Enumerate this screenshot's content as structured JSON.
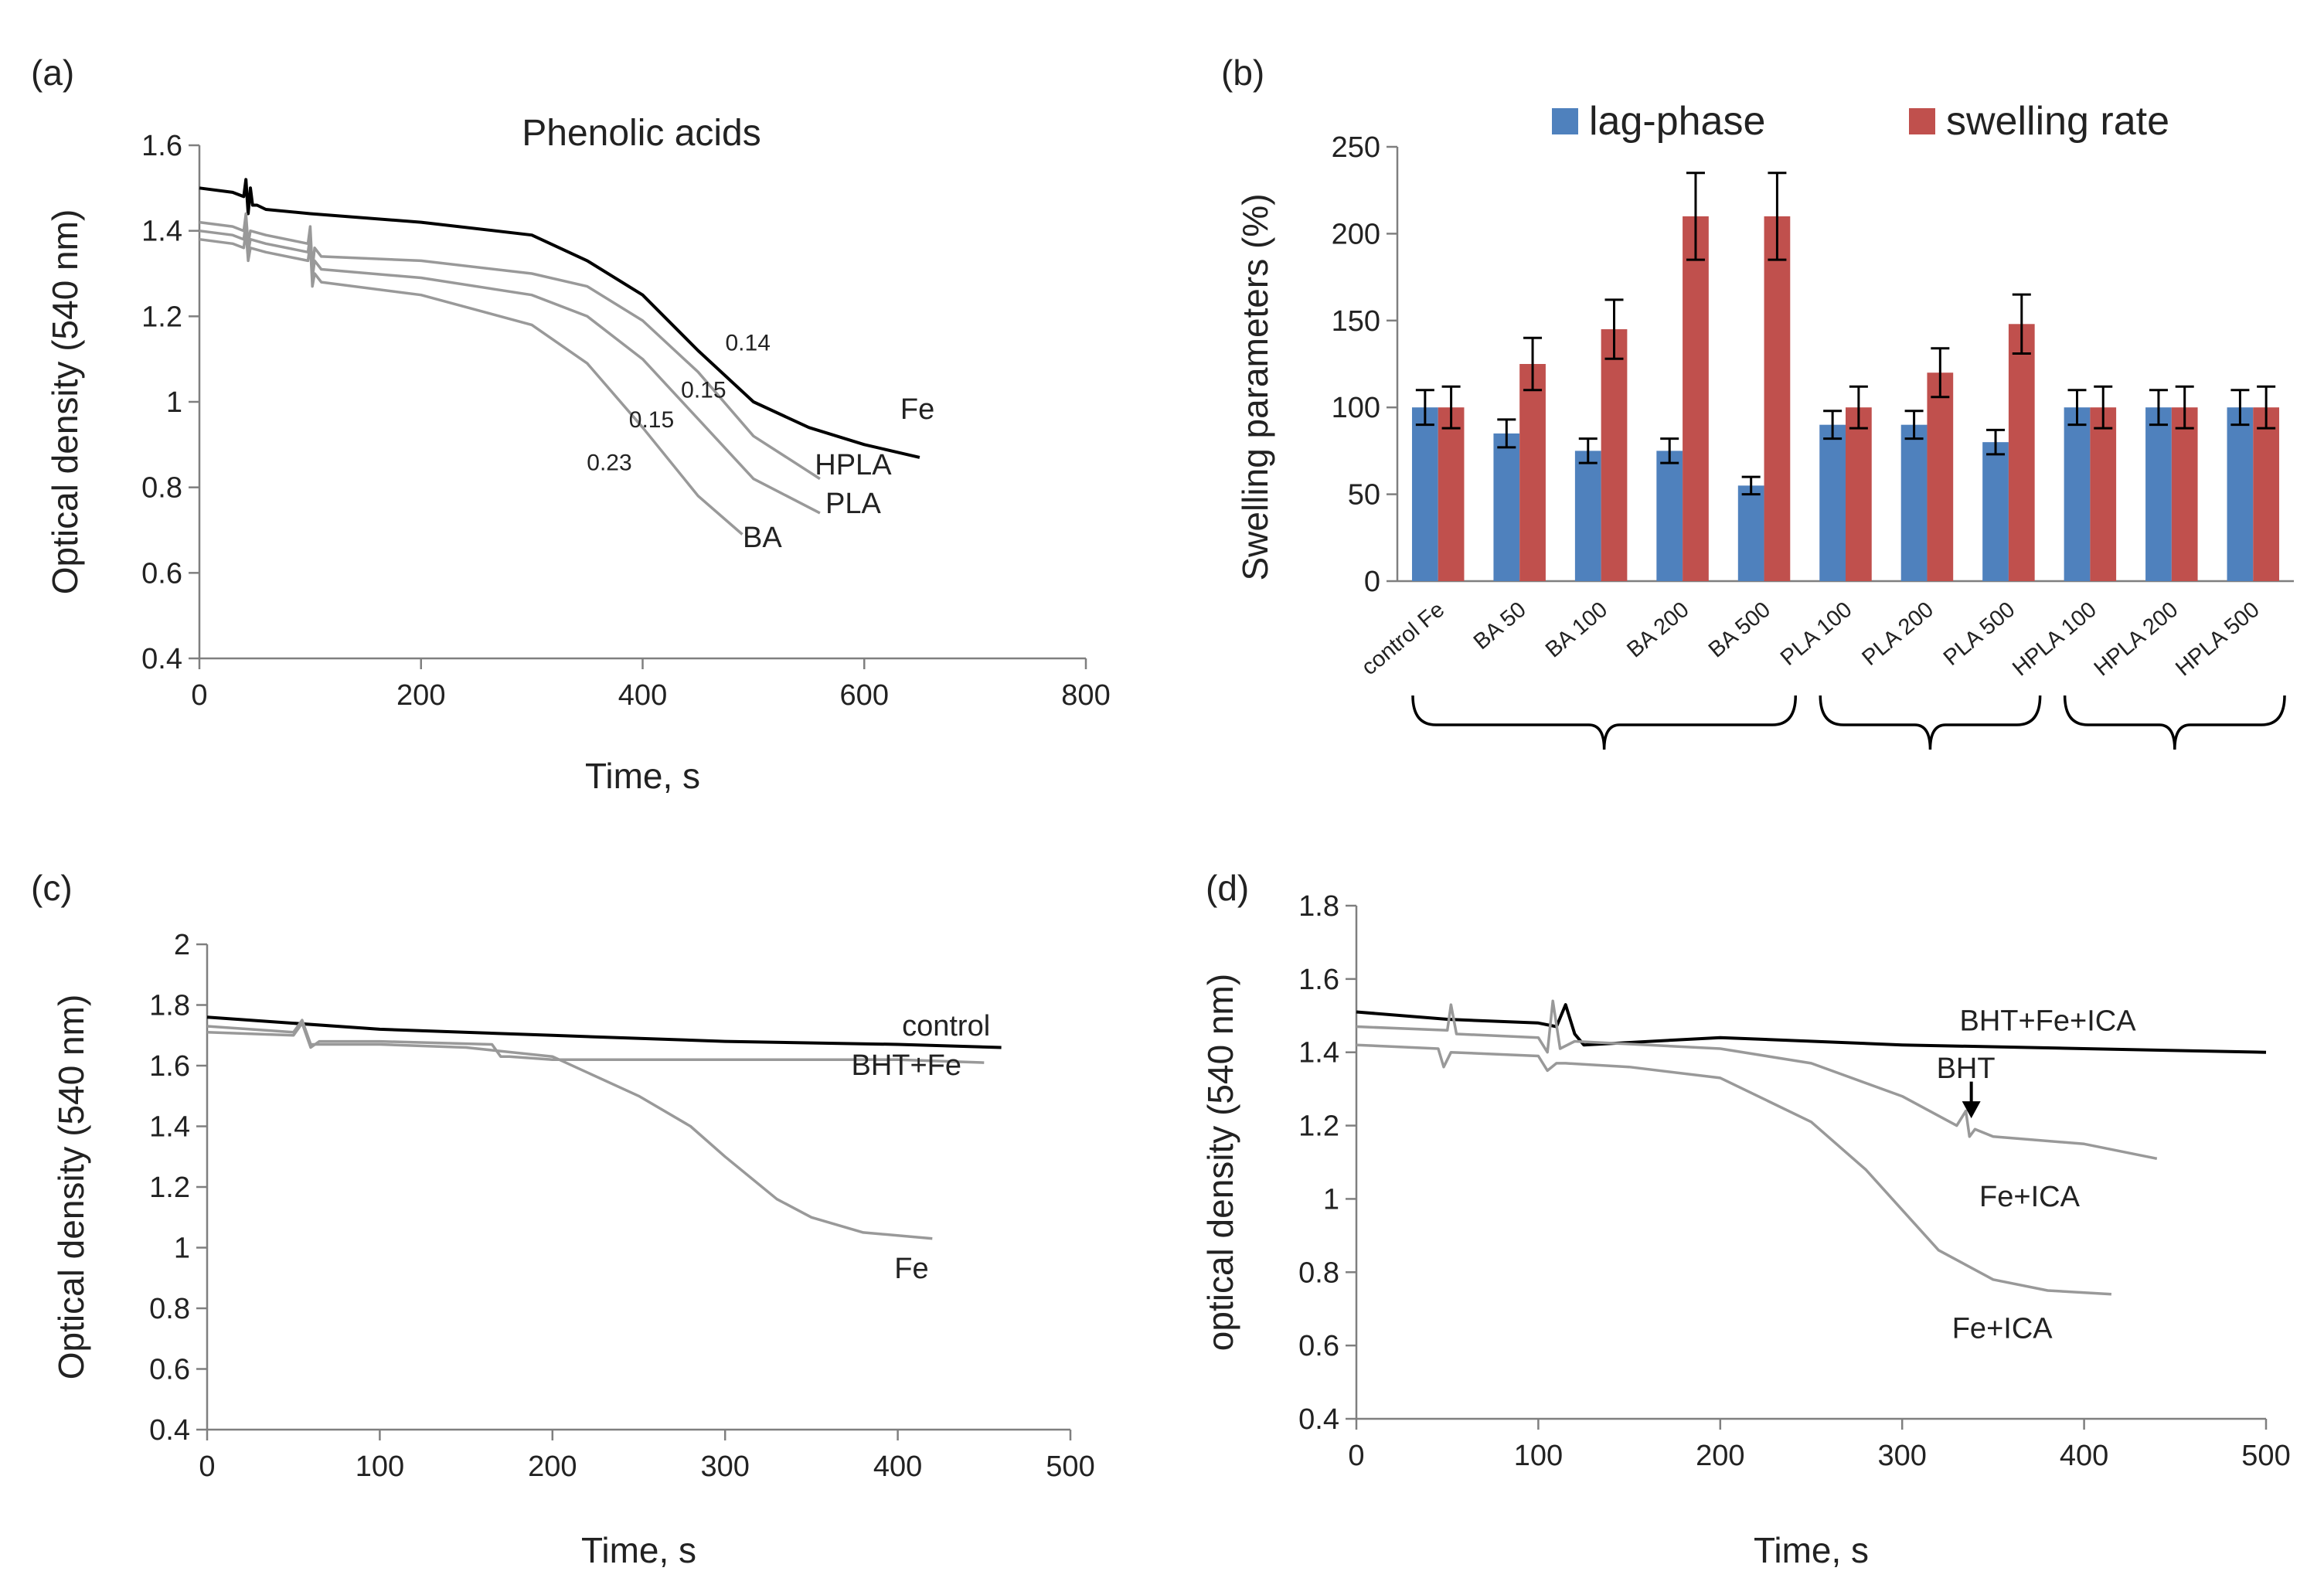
{
  "chart_data": [
    {
      "panel": "(a)",
      "type": "line",
      "title": "Phenolic acids",
      "xlabel": "Time, s",
      "ylabel": "Optical density (540 nm)",
      "xlim": [
        0,
        800
      ],
      "ylim": [
        0.4,
        1.6
      ],
      "xticks": [
        0,
        200,
        400,
        600,
        800
      ],
      "xtick_labels": [
        "0",
        "200",
        "400",
        "600",
        "800"
      ],
      "yticks": [
        0.4,
        0.6,
        0.8,
        1.0,
        1.2,
        1.4,
        1.6
      ],
      "ytick_labels": [
        "0.4",
        "0.6",
        "0.8",
        "1",
        "1.2",
        "1.4",
        "1.6"
      ],
      "series": [
        {
          "name": "Fe",
          "color": "#000000",
          "x": [
            0,
            30,
            40,
            42,
            44,
            46,
            48,
            52,
            60,
            100,
            200,
            300,
            350,
            400,
            450,
            500,
            550,
            600,
            650
          ],
          "y": [
            1.5,
            1.49,
            1.48,
            1.52,
            1.44,
            1.5,
            1.46,
            1.46,
            1.45,
            1.44,
            1.42,
            1.39,
            1.33,
            1.25,
            1.12,
            1.0,
            0.94,
            0.9,
            0.87
          ]
        },
        {
          "name": "HPLA",
          "color": "#999999",
          "x": [
            0,
            30,
            40,
            42,
            44,
            46,
            60,
            98,
            100,
            102,
            104,
            110,
            200,
            300,
            350,
            400,
            450,
            500,
            560
          ],
          "y": [
            1.42,
            1.41,
            1.4,
            1.44,
            1.37,
            1.4,
            1.39,
            1.37,
            1.41,
            1.31,
            1.36,
            1.34,
            1.33,
            1.3,
            1.27,
            1.19,
            1.07,
            0.92,
            0.82
          ]
        },
        {
          "name": "PLA",
          "color": "#999999",
          "x": [
            0,
            30,
            40,
            42,
            44,
            46,
            60,
            98,
            100,
            102,
            104,
            110,
            200,
            300,
            350,
            400,
            450,
            500,
            560
          ],
          "y": [
            1.4,
            1.39,
            1.38,
            1.42,
            1.35,
            1.38,
            1.37,
            1.35,
            1.39,
            1.29,
            1.33,
            1.31,
            1.29,
            1.25,
            1.2,
            1.1,
            0.96,
            0.82,
            0.74
          ]
        },
        {
          "name": "BA",
          "color": "#999999",
          "x": [
            0,
            30,
            40,
            42,
            44,
            46,
            60,
            98,
            100,
            102,
            104,
            110,
            200,
            300,
            350,
            400,
            450,
            490
          ],
          "y": [
            1.38,
            1.37,
            1.36,
            1.4,
            1.33,
            1.36,
            1.35,
            1.33,
            1.37,
            1.27,
            1.3,
            1.28,
            1.25,
            1.18,
            1.09,
            0.94,
            0.78,
            0.69
          ]
        }
      ],
      "annotations": [
        {
          "text": "Fe",
          "x": 648,
          "y": 0.96,
          "size": "large"
        },
        {
          "text": "HPLA",
          "x": 590,
          "y": 0.83,
          "size": "large"
        },
        {
          "text": "PLA",
          "x": 590,
          "y": 0.74,
          "size": "large"
        },
        {
          "text": "BA",
          "x": 508,
          "y": 0.66,
          "size": "large"
        },
        {
          "text": "0.14",
          "x": 495,
          "y": 1.12,
          "size": "small"
        },
        {
          "text": "0.15",
          "x": 455,
          "y": 1.01,
          "size": "small"
        },
        {
          "text": "0.15",
          "x": 408,
          "y": 0.94,
          "size": "small"
        },
        {
          "text": "0.23",
          "x": 370,
          "y": 0.84,
          "size": "small"
        }
      ]
    },
    {
      "panel": "(b)",
      "type": "bar",
      "xlabel": "",
      "ylabel": "Swelling parameters (%)",
      "ylim": [
        0,
        250
      ],
      "yticks": [
        0,
        50,
        100,
        150,
        200,
        250
      ],
      "ytick_labels": [
        "0",
        "50",
        "100",
        "150",
        "200",
        "250"
      ],
      "categories": [
        "control Fe",
        "BA 50",
        "BA 100",
        "BA 200",
        "BA 500",
        "PLA 100",
        "PLA 200",
        "PLA 500",
        "HPLA 100",
        "HPLA 200",
        "HPLA 500"
      ],
      "series": [
        {
          "name": "lag-phase",
          "color": "#4F81BD",
          "values": [
            100,
            85,
            75,
            75,
            55,
            90,
            90,
            80,
            100,
            100,
            100
          ],
          "errors": [
            10,
            8,
            7,
            7,
            5,
            8,
            8,
            7,
            10,
            10,
            10
          ]
        },
        {
          "name": "swelling rate",
          "color": "#C0504D",
          "values": [
            100,
            125,
            145,
            210,
            210,
            100,
            120,
            148,
            100,
            100,
            100
          ],
          "errors": [
            12,
            15,
            17,
            25,
            25,
            12,
            14,
            17,
            12,
            12,
            12
          ]
        }
      ],
      "groups": [
        {
          "from": 0,
          "to": 4
        },
        {
          "from": 5,
          "to": 7
        },
        {
          "from": 8,
          "to": 10
        }
      ],
      "legend_position": "top"
    },
    {
      "panel": "(c)",
      "type": "line",
      "xlabel": "Time, s",
      "ylabel": "Optical density (540 nm)",
      "xlim": [
        0,
        500
      ],
      "ylim": [
        0.4,
        2.0
      ],
      "xticks": [
        0,
        100,
        200,
        300,
        400,
        500
      ],
      "xtick_labels": [
        "0",
        "100",
        "200",
        "300",
        "400",
        "500"
      ],
      "yticks": [
        0.4,
        0.6,
        0.8,
        1.0,
        1.2,
        1.4,
        1.6,
        1.8,
        2.0
      ],
      "ytick_labels": [
        "0.4",
        "0.6",
        "0.8",
        "1",
        "1.2",
        "1.4",
        "1.6",
        "1.8",
        "2"
      ],
      "series": [
        {
          "name": "control",
          "color": "#000000",
          "x": [
            0,
            50,
            100,
            200,
            300,
            400,
            460
          ],
          "y": [
            1.76,
            1.74,
            1.72,
            1.7,
            1.68,
            1.67,
            1.66
          ]
        },
        {
          "name": "BHT+Fe",
          "color": "#999999",
          "x": [
            0,
            50,
            55,
            60,
            65,
            100,
            165,
            170,
            175,
            200,
            300,
            400,
            450
          ],
          "y": [
            1.71,
            1.7,
            1.74,
            1.66,
            1.68,
            1.68,
            1.67,
            1.63,
            1.63,
            1.62,
            1.62,
            1.62,
            1.61
          ]
        },
        {
          "name": "Fe",
          "color": "#999999",
          "x": [
            0,
            50,
            55,
            60,
            100,
            150,
            200,
            250,
            280,
            300,
            330,
            350,
            380,
            420
          ],
          "y": [
            1.73,
            1.71,
            1.75,
            1.67,
            1.67,
            1.66,
            1.63,
            1.5,
            1.4,
            1.3,
            1.16,
            1.1,
            1.05,
            1.03
          ]
        }
      ],
      "annotations": [
        {
          "text": "control",
          "x": 428,
          "y": 1.7
        },
        {
          "text": "BHT+Fe",
          "x": 405,
          "y": 1.57
        },
        {
          "text": "Fe",
          "x": 408,
          "y": 0.9
        }
      ]
    },
    {
      "panel": "(d)",
      "type": "line",
      "xlabel": "Time, s",
      "ylabel": "optical density (540 nm)",
      "xlim": [
        0,
        500
      ],
      "ylim": [
        0.4,
        1.8
      ],
      "xticks": [
        0,
        100,
        200,
        300,
        400,
        500
      ],
      "xtick_labels": [
        "0",
        "100",
        "200",
        "300",
        "400",
        "500"
      ],
      "yticks": [
        0.4,
        0.6,
        0.8,
        1.0,
        1.2,
        1.4,
        1.6,
        1.8
      ],
      "ytick_labels": [
        "0.4",
        "0.6",
        "0.8",
        "1",
        "1.2",
        "1.4",
        "1.6",
        "1.8"
      ],
      "series": [
        {
          "name": "BHT+Fe+ICA",
          "color": "#000000",
          "x": [
            0,
            50,
            100,
            110,
            115,
            120,
            125,
            200,
            300,
            400,
            500
          ],
          "y": [
            1.51,
            1.49,
            1.48,
            1.47,
            1.53,
            1.45,
            1.42,
            1.44,
            1.42,
            1.41,
            1.4
          ]
        },
        {
          "name": "Fe+ICA (BHT added)",
          "color": "#999999",
          "x": [
            0,
            50,
            52,
            55,
            100,
            105,
            108,
            112,
            120,
            200,
            250,
            300,
            330,
            335,
            337,
            340,
            350,
            400,
            440
          ],
          "y": [
            1.47,
            1.46,
            1.53,
            1.45,
            1.44,
            1.4,
            1.54,
            1.41,
            1.43,
            1.41,
            1.37,
            1.28,
            1.2,
            1.24,
            1.17,
            1.19,
            1.17,
            1.15,
            1.11
          ]
        },
        {
          "name": "Fe+ICA",
          "color": "#999999",
          "x": [
            0,
            45,
            48,
            52,
            100,
            105,
            110,
            115,
            150,
            200,
            250,
            280,
            300,
            320,
            350,
            380,
            415
          ],
          "y": [
            1.42,
            1.41,
            1.36,
            1.4,
            1.39,
            1.35,
            1.37,
            1.37,
            1.36,
            1.33,
            1.21,
            1.08,
            0.97,
            0.86,
            0.78,
            0.75,
            0.74
          ]
        }
      ],
      "annotations": [
        {
          "text": "BHT+Fe+ICA",
          "x": 380,
          "y": 1.46
        },
        {
          "text": "BHT",
          "x": 335,
          "y": 1.33
        },
        {
          "text": "Fe+ICA",
          "x": 370,
          "y": 0.98
        },
        {
          "text": "Fe+ICA",
          "x": 355,
          "y": 0.62
        }
      ],
      "arrow": {
        "label": "BHT",
        "x": 338,
        "y_from": 1.32,
        "y_to": 1.22
      }
    }
  ]
}
